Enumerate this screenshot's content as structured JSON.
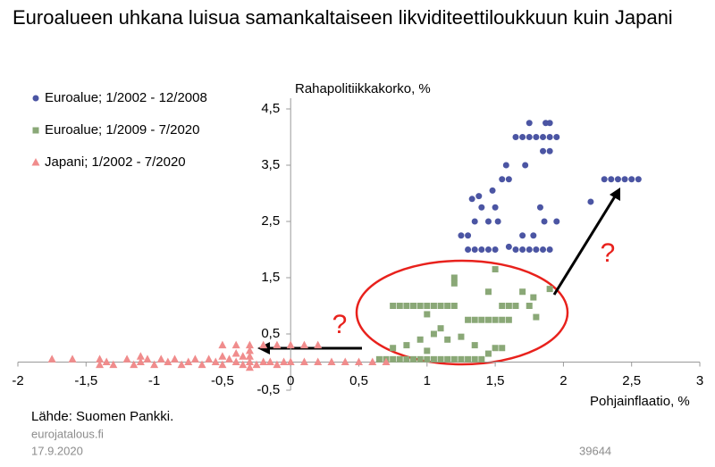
{
  "chart_data": {
    "type": "scatter",
    "title": "Euroalueen uhkana luisua samankaltaiseen likviditeettiloukkuun kuin Japani",
    "y_label": "Rahapolitiikkakorko, %",
    "x_label": "Pohjainflaatio, %",
    "annotations": [
      "?",
      "?"
    ],
    "source": "Lähde: Suomen Pankki.",
    "site": "eurojatalous.fi",
    "date": "17.9.2020",
    "id": "39644",
    "xlim": [
      -2,
      3
    ],
    "ylim": [
      -0.5,
      4.5
    ],
    "xticks": [
      -2,
      {
        "value": -1.5,
        "label": "-1,5"
      },
      -1,
      {
        "value": -0.5,
        "label": "-0,5"
      },
      0,
      {
        "value": 0.5,
        "label": "0,5"
      },
      1,
      {
        "value": 1.5,
        "label": "1,5"
      },
      2,
      {
        "value": 2.5,
        "label": "2,5"
      },
      3
    ],
    "yticks": [
      {
        "value": -0.5,
        "label": "-0,5"
      },
      {
        "value": 0.5,
        "label": "0,5"
      },
      {
        "value": 1.5,
        "label": "1,5"
      },
      {
        "value": 2.5,
        "label": "2,5"
      },
      {
        "value": 3.5,
        "label": "3,5"
      },
      {
        "value": 4.5,
        "label": "4,5"
      }
    ],
    "grid": false,
    "legend": "top-left",
    "series": [
      {
        "name": "Euroalue; 1/2002 - 12/2008",
        "color": "#4b55a3",
        "marker": "circle",
        "x": [
          1.25,
          1.3,
          1.35,
          1.3,
          1.35,
          1.4,
          1.45,
          1.5,
          1.4,
          1.45,
          1.38,
          1.48,
          1.5,
          1.55,
          1.52,
          1.58,
          1.6,
          1.65,
          1.7,
          1.75,
          1.8,
          1.85,
          1.9,
          1.7,
          1.78,
          1.65,
          1.7,
          1.75,
          1.8,
          1.85,
          1.9,
          1.95,
          1.72,
          1.85,
          1.9,
          1.87,
          1.9,
          1.83,
          1.86,
          1.95,
          1.75,
          2.2,
          2.3,
          2.35,
          2.4,
          2.45,
          2.5,
          2.55,
          1.6,
          1.33
        ],
        "values": [
          2.25,
          2.25,
          2.5,
          2.0,
          2.0,
          2.0,
          2.0,
          2.0,
          2.75,
          2.5,
          2.95,
          3.05,
          2.75,
          3.25,
          2.5,
          3.5,
          3.25,
          2.0,
          2.0,
          2.0,
          2.0,
          2.0,
          2.0,
          2.25,
          2.25,
          4.0,
          4.0,
          4.0,
          4.0,
          4.0,
          4.0,
          4.0,
          3.5,
          3.75,
          3.75,
          4.25,
          4.25,
          2.75,
          2.5,
          2.5,
          4.25,
          2.85,
          3.25,
          3.25,
          3.25,
          3.25,
          3.25,
          3.25,
          2.05,
          2.9
        ]
      },
      {
        "name": "Euroalue; 1/2009 - 7/2020",
        "color": "#8aa877",
        "marker": "square",
        "x": [
          0.65,
          0.7,
          0.75,
          0.8,
          0.85,
          0.9,
          0.95,
          1.0,
          1.05,
          1.1,
          1.15,
          1.2,
          1.25,
          1.3,
          1.35,
          1.4,
          0.75,
          0.8,
          0.85,
          0.9,
          0.95,
          1.0,
          1.05,
          1.1,
          1.15,
          1.2,
          1.3,
          1.35,
          1.4,
          1.45,
          1.5,
          1.55,
          1.6,
          1.5,
          1.55,
          1.2,
          1.2,
          1.45,
          1.5,
          1.55,
          1.6,
          1.65,
          1.7,
          1.75,
          1.8,
          1.78,
          1.9,
          1.05,
          0.95,
          0.85,
          0.75,
          1.0,
          1.1,
          1.15,
          1.25,
          1.35,
          1.45,
          1.0
        ],
        "values": [
          0.05,
          0.05,
          0.05,
          0.05,
          0.05,
          0.05,
          0.05,
          0.05,
          0.05,
          0.05,
          0.05,
          0.05,
          0.05,
          0.05,
          0.05,
          0.05,
          1.0,
          1.0,
          1.0,
          1.0,
          1.0,
          1.0,
          1.0,
          1.0,
          1.0,
          1.0,
          0.75,
          0.75,
          0.75,
          0.75,
          0.75,
          0.75,
          0.75,
          0.25,
          0.25,
          1.5,
          1.4,
          1.25,
          1.65,
          1.0,
          1.0,
          1.0,
          1.25,
          1.0,
          0.8,
          1.15,
          1.3,
          0.5,
          0.4,
          0.3,
          0.25,
          0.2,
          0.6,
          0.4,
          0.45,
          0.3,
          0.15,
          0.85
        ]
      },
      {
        "name": "Japani; 1/2002 - 7/2020",
        "color": "#f08c8c",
        "marker": "triangle",
        "x": [
          -1.75,
          -1.4,
          -1.4,
          -1.35,
          -1.3,
          -1.2,
          -1.15,
          -1.1,
          -1.05,
          -1.0,
          -0.95,
          -0.9,
          -0.85,
          -0.8,
          -0.75,
          -0.7,
          -0.65,
          -0.6,
          -0.55,
          -0.5,
          -0.45,
          -0.4,
          -0.35,
          -0.3,
          -0.25,
          -0.2,
          -0.15,
          -0.1,
          -0.05,
          0,
          0.1,
          0.2,
          0.3,
          0.4,
          0.5,
          0.6,
          0.7,
          -0.5,
          -0.4,
          -0.3,
          -0.2,
          -0.1,
          0,
          0.1,
          0.2,
          -0.5,
          -0.4,
          -0.3,
          -0.35,
          -0.3,
          -1.6,
          -1.1,
          -0.3
        ],
        "values": [
          0.05,
          -0.05,
          0.05,
          0,
          -0.05,
          0.05,
          -0.05,
          0,
          0.05,
          -0.05,
          0.05,
          0,
          0.05,
          -0.05,
          0,
          0.05,
          -0.05,
          0.05,
          0,
          -0.05,
          0.05,
          0,
          -0.05,
          0,
          -0.05,
          0,
          0,
          -0.05,
          0,
          0,
          0,
          0,
          0,
          0,
          0,
          0,
          0,
          0.3,
          0.3,
          0.3,
          0.3,
          0.3,
          0.3,
          0.3,
          0.3,
          0.1,
          0.15,
          0.2,
          0.1,
          0.1,
          0.05,
          0.1,
          -0.1
        ]
      }
    ]
  }
}
